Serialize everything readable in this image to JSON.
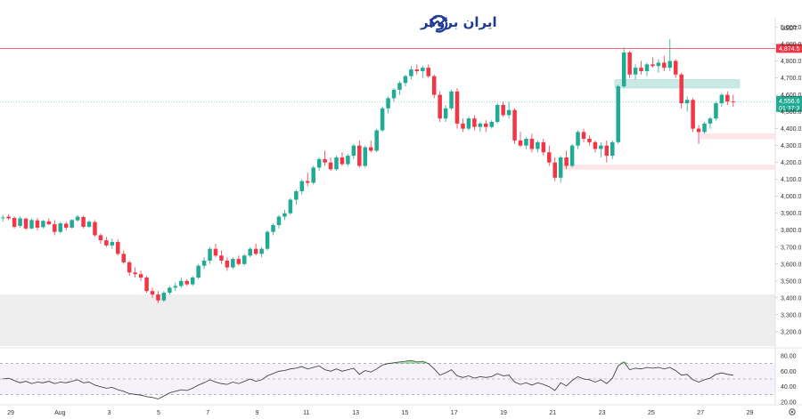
{
  "brand": {
    "name": "ایران بروکر",
    "icon": "trend-chart-icon",
    "color": "#1f3a93"
  },
  "chart_data": {
    "type": "candlestick",
    "currency": "USDT",
    "y_ticks": [
      "5,000.0",
      "4,900.0",
      "4,800.0",
      "4,700.0",
      "4,600.0",
      "4,500.0",
      "4,400.0",
      "4,300.0",
      "4,200.0",
      "4,100.0",
      "4,000.0",
      "3,900.0",
      "3,800.0",
      "3,700.0",
      "3,600.0",
      "3,500.0",
      "3,400.0",
      "3,300.0",
      "3,200.0"
    ],
    "ylim": [
      3200,
      5000
    ],
    "x_ticks": [
      "29",
      "Aug",
      "3",
      "5",
      "7",
      "9",
      "11",
      "13",
      "15",
      "17",
      "19",
      "21",
      "23",
      "25",
      "27",
      "29"
    ],
    "rsi_ticks": [
      "80.00",
      "60.00",
      "40.00",
      "20.00"
    ],
    "rsi_ylim": [
      20,
      80
    ],
    "price_line": {
      "value": 4874.5,
      "label": "4,874.5",
      "color": "#f23645"
    },
    "current_price": {
      "value": 4556.6,
      "label": "4,556.6",
      "countdown": "01:37:3",
      "color": "#22ab94"
    },
    "zones": [
      {
        "kind": "resistance",
        "from": 4640,
        "to": 4690,
        "color": "#b2dfdb"
      },
      {
        "kind": "support",
        "from": 4340,
        "to": 4370,
        "color": "#fddde0"
      },
      {
        "kind": "support",
        "from": 4160,
        "to": 4185,
        "color": "#fddde0"
      }
    ],
    "colors": {
      "up": "#22ab94",
      "down": "#f23645"
    },
    "candles": [
      [
        3870,
        3890,
        3850,
        3875
      ],
      [
        3880,
        3895,
        3860,
        3870
      ],
      [
        3872,
        3880,
        3810,
        3820
      ],
      [
        3825,
        3880,
        3815,
        3870
      ],
      [
        3868,
        3875,
        3800,
        3810
      ],
      [
        3810,
        3870,
        3805,
        3860
      ],
      [
        3858,
        3872,
        3800,
        3815
      ],
      [
        3818,
        3860,
        3810,
        3855
      ],
      [
        3852,
        3870,
        3830,
        3835
      ],
      [
        3835,
        3860,
        3770,
        3790
      ],
      [
        3790,
        3850,
        3780,
        3840
      ],
      [
        3838,
        3850,
        3800,
        3815
      ],
      [
        3815,
        3865,
        3810,
        3860
      ],
      [
        3858,
        3890,
        3850,
        3880
      ],
      [
        3878,
        3885,
        3810,
        3820
      ],
      [
        3820,
        3860,
        3815,
        3850
      ],
      [
        3848,
        3860,
        3760,
        3770
      ],
      [
        3770,
        3780,
        3720,
        3740
      ],
      [
        3740,
        3760,
        3700,
        3710
      ],
      [
        3710,
        3750,
        3690,
        3730
      ],
      [
        3730,
        3745,
        3650,
        3660
      ],
      [
        3660,
        3680,
        3600,
        3610
      ],
      [
        3610,
        3620,
        3530,
        3550
      ],
      [
        3550,
        3580,
        3520,
        3540
      ],
      [
        3540,
        3560,
        3500,
        3520
      ],
      [
        3520,
        3530,
        3430,
        3440
      ],
      [
        3440,
        3460,
        3400,
        3420
      ],
      [
        3420,
        3440,
        3370,
        3385
      ],
      [
        3385,
        3440,
        3375,
        3430
      ],
      [
        3430,
        3470,
        3420,
        3460
      ],
      [
        3460,
        3490,
        3440,
        3470
      ],
      [
        3470,
        3520,
        3460,
        3500
      ],
      [
        3500,
        3510,
        3470,
        3480
      ],
      [
        3480,
        3530,
        3470,
        3520
      ],
      [
        3520,
        3600,
        3510,
        3590
      ],
      [
        3590,
        3640,
        3570,
        3620
      ],
      [
        3620,
        3700,
        3600,
        3690
      ],
      [
        3690,
        3720,
        3640,
        3650
      ],
      [
        3650,
        3680,
        3600,
        3620
      ],
      [
        3620,
        3640,
        3560,
        3580
      ],
      [
        3580,
        3640,
        3570,
        3630
      ],
      [
        3630,
        3650,
        3590,
        3600
      ],
      [
        3600,
        3660,
        3590,
        3650
      ],
      [
        3650,
        3700,
        3640,
        3690
      ],
      [
        3690,
        3720,
        3650,
        3660
      ],
      [
        3660,
        3700,
        3640,
        3690
      ],
      [
        3690,
        3800,
        3680,
        3790
      ],
      [
        3790,
        3840,
        3770,
        3830
      ],
      [
        3830,
        3890,
        3810,
        3880
      ],
      [
        3880,
        3920,
        3860,
        3900
      ],
      [
        3900,
        3990,
        3890,
        3980
      ],
      [
        3980,
        4040,
        3950,
        4030
      ],
      [
        4030,
        4100,
        4010,
        4090
      ],
      [
        4090,
        4140,
        4060,
        4080
      ],
      [
        4080,
        4180,
        4070,
        4170
      ],
      [
        4170,
        4230,
        4150,
        4220
      ],
      [
        4220,
        4270,
        4180,
        4200
      ],
      [
        4200,
        4230,
        4150,
        4160
      ],
      [
        4160,
        4240,
        4150,
        4230
      ],
      [
        4230,
        4260,
        4180,
        4190
      ],
      [
        4190,
        4250,
        4180,
        4240
      ],
      [
        4240,
        4310,
        4220,
        4300
      ],
      [
        4300,
        4330,
        4170,
        4180
      ],
      [
        4180,
        4300,
        4170,
        4290
      ],
      [
        4290,
        4330,
        4260,
        4270
      ],
      [
        4270,
        4400,
        4260,
        4390
      ],
      [
        4390,
        4530,
        4380,
        4520
      ],
      [
        4520,
        4590,
        4490,
        4580
      ],
      [
        4580,
        4640,
        4560,
        4630
      ],
      [
        4630,
        4680,
        4600,
        4670
      ],
      [
        4670,
        4720,
        4650,
        4710
      ],
      [
        4710,
        4770,
        4690,
        4750
      ],
      [
        4750,
        4780,
        4720,
        4740
      ],
      [
        4740,
        4770,
        4700,
        4760
      ],
      [
        4760,
        4780,
        4700,
        4710
      ],
      [
        4710,
        4720,
        4580,
        4600
      ],
      [
        4600,
        4620,
        4440,
        4460
      ],
      [
        4460,
        4540,
        4440,
        4520
      ],
      [
        4520,
        4630,
        4510,
        4620
      ],
      [
        4620,
        4640,
        4400,
        4430
      ],
      [
        4430,
        4460,
        4380,
        4400
      ],
      [
        4400,
        4470,
        4390,
        4460
      ],
      [
        4460,
        4480,
        4390,
        4410
      ],
      [
        4410,
        4440,
        4380,
        4430
      ],
      [
        4430,
        4450,
        4380,
        4410
      ],
      [
        4410,
        4450,
        4400,
        4440
      ],
      [
        4440,
        4550,
        4430,
        4540
      ],
      [
        4540,
        4560,
        4470,
        4480
      ],
      [
        4480,
        4560,
        4460,
        4510
      ],
      [
        4510,
        4520,
        4310,
        4330
      ],
      [
        4330,
        4380,
        4290,
        4300
      ],
      [
        4300,
        4350,
        4280,
        4340
      ],
      [
        4340,
        4370,
        4260,
        4280
      ],
      [
        4280,
        4330,
        4260,
        4320
      ],
      [
        4320,
        4340,
        4240,
        4260
      ],
      [
        4260,
        4300,
        4180,
        4200
      ],
      [
        4200,
        4230,
        4090,
        4110
      ],
      [
        4110,
        4240,
        4080,
        4230
      ],
      [
        4230,
        4270,
        4160,
        4180
      ],
      [
        4180,
        4310,
        4170,
        4300
      ],
      [
        4300,
        4390,
        4280,
        4380
      ],
      [
        4380,
        4400,
        4320,
        4340
      ],
      [
        4340,
        4360,
        4300,
        4320
      ],
      [
        4320,
        4330,
        4260,
        4280
      ],
      [
        4280,
        4320,
        4230,
        4300
      ],
      [
        4300,
        4330,
        4200,
        4240
      ],
      [
        4240,
        4330,
        4220,
        4320
      ],
      [
        4320,
        4660,
        4310,
        4650
      ],
      [
        4650,
        4880,
        4640,
        4850
      ],
      [
        4850,
        4860,
        4700,
        4720
      ],
      [
        4720,
        4780,
        4690,
        4760
      ],
      [
        4760,
        4800,
        4720,
        4740
      ],
      [
        4740,
        4790,
        4710,
        4780
      ],
      [
        4780,
        4820,
        4760,
        4770
      ],
      [
        4770,
        4810,
        4730,
        4790
      ],
      [
        4790,
        4830,
        4740,
        4760
      ],
      [
        4760,
        4930,
        4740,
        4800
      ],
      [
        4800,
        4810,
        4700,
        4720
      ],
      [
        4720,
        4730,
        4520,
        4550
      ],
      [
        4550,
        4590,
        4500,
        4570
      ],
      [
        4570,
        4580,
        4380,
        4400
      ],
      [
        4400,
        4420,
        4310,
        4380
      ],
      [
        4380,
        4440,
        4370,
        4430
      ],
      [
        4430,
        4470,
        4400,
        4460
      ],
      [
        4460,
        4560,
        4450,
        4550
      ],
      [
        4550,
        4610,
        4530,
        4600
      ],
      [
        4600,
        4620,
        4540,
        4560
      ],
      [
        4560,
        4600,
        4530,
        4556.6
      ]
    ],
    "rsi": [
      50,
      51,
      48,
      45,
      47,
      44,
      46,
      45,
      47,
      44,
      46,
      45,
      47,
      49,
      45,
      46,
      42,
      40,
      38,
      39,
      36,
      34,
      31,
      30,
      29,
      27,
      26,
      24,
      28,
      32,
      34,
      36,
      35,
      38,
      42,
      45,
      49,
      46,
      44,
      43,
      46,
      44,
      47,
      50,
      47,
      49,
      54,
      57,
      60,
      61,
      63,
      64,
      66,
      63,
      65,
      67,
      62,
      60,
      63,
      60,
      62,
      64,
      56,
      61,
      59,
      63,
      68,
      70,
      71,
      72,
      73,
      74,
      72,
      73,
      70,
      63,
      55,
      58,
      62,
      54,
      52,
      54,
      51,
      53,
      52,
      53,
      57,
      54,
      55,
      46,
      43,
      45,
      42,
      45,
      43,
      40,
      35,
      45,
      41,
      48,
      53,
      50,
      49,
      46,
      49,
      44,
      51,
      67,
      72,
      62,
      64,
      63,
      65,
      64,
      65,
      63,
      65,
      61,
      55,
      56,
      49,
      46,
      49,
      51,
      56,
      58,
      56,
      55
    ]
  }
}
